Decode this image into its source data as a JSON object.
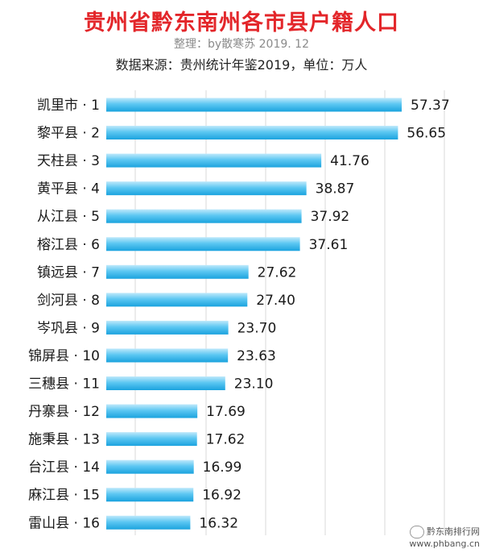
{
  "header": {
    "title": "贵州省黔东南州各市县户籍人口",
    "subtitle": "整理：by散寒苏   2019. 12",
    "source": "数据来源：贵州统计年鉴2019，单位：万人"
  },
  "watermark": {
    "line1": "黔东南排行网",
    "line2": "www.phbang.cn"
  },
  "colors": {
    "title": "#e3262a",
    "bar_top": "#bfe9fb",
    "bar_mid": "#5cc7f2",
    "bar_bottom": "#1ba3de",
    "grid": "#d9d9d9"
  },
  "chart_data": {
    "type": "bar",
    "orientation": "horizontal",
    "categories": [
      "凯里市 · 1",
      "黎平县 · 2",
      "天柱县 · 3",
      "黄平县 · 4",
      "从江县 · 5",
      "榕江县 · 6",
      "镇远县 · 7",
      "剑河县 · 8",
      "岑巩县 · 9",
      "锦屏县 · 10",
      "三穗县 · 11",
      "丹寨县 · 12",
      "施秉县 · 13",
      "台江县 · 14",
      "麻江县 · 15",
      "雷山县 · 16"
    ],
    "values": [
      57.37,
      56.65,
      41.76,
      38.87,
      37.92,
      37.61,
      27.62,
      27.4,
      23.7,
      23.63,
      23.1,
      17.69,
      17.62,
      16.99,
      16.92,
      16.32
    ],
    "value_labels": [
      "57.37",
      "56.65",
      "41.76",
      "38.87",
      "37.92",
      "37.61",
      "27.62",
      "27.40",
      "23.70",
      "23.63",
      "23.10",
      "17.69",
      "17.62",
      "16.99",
      "16.92",
      "16.32"
    ],
    "grid": "vertical",
    "legend": "none"
  }
}
